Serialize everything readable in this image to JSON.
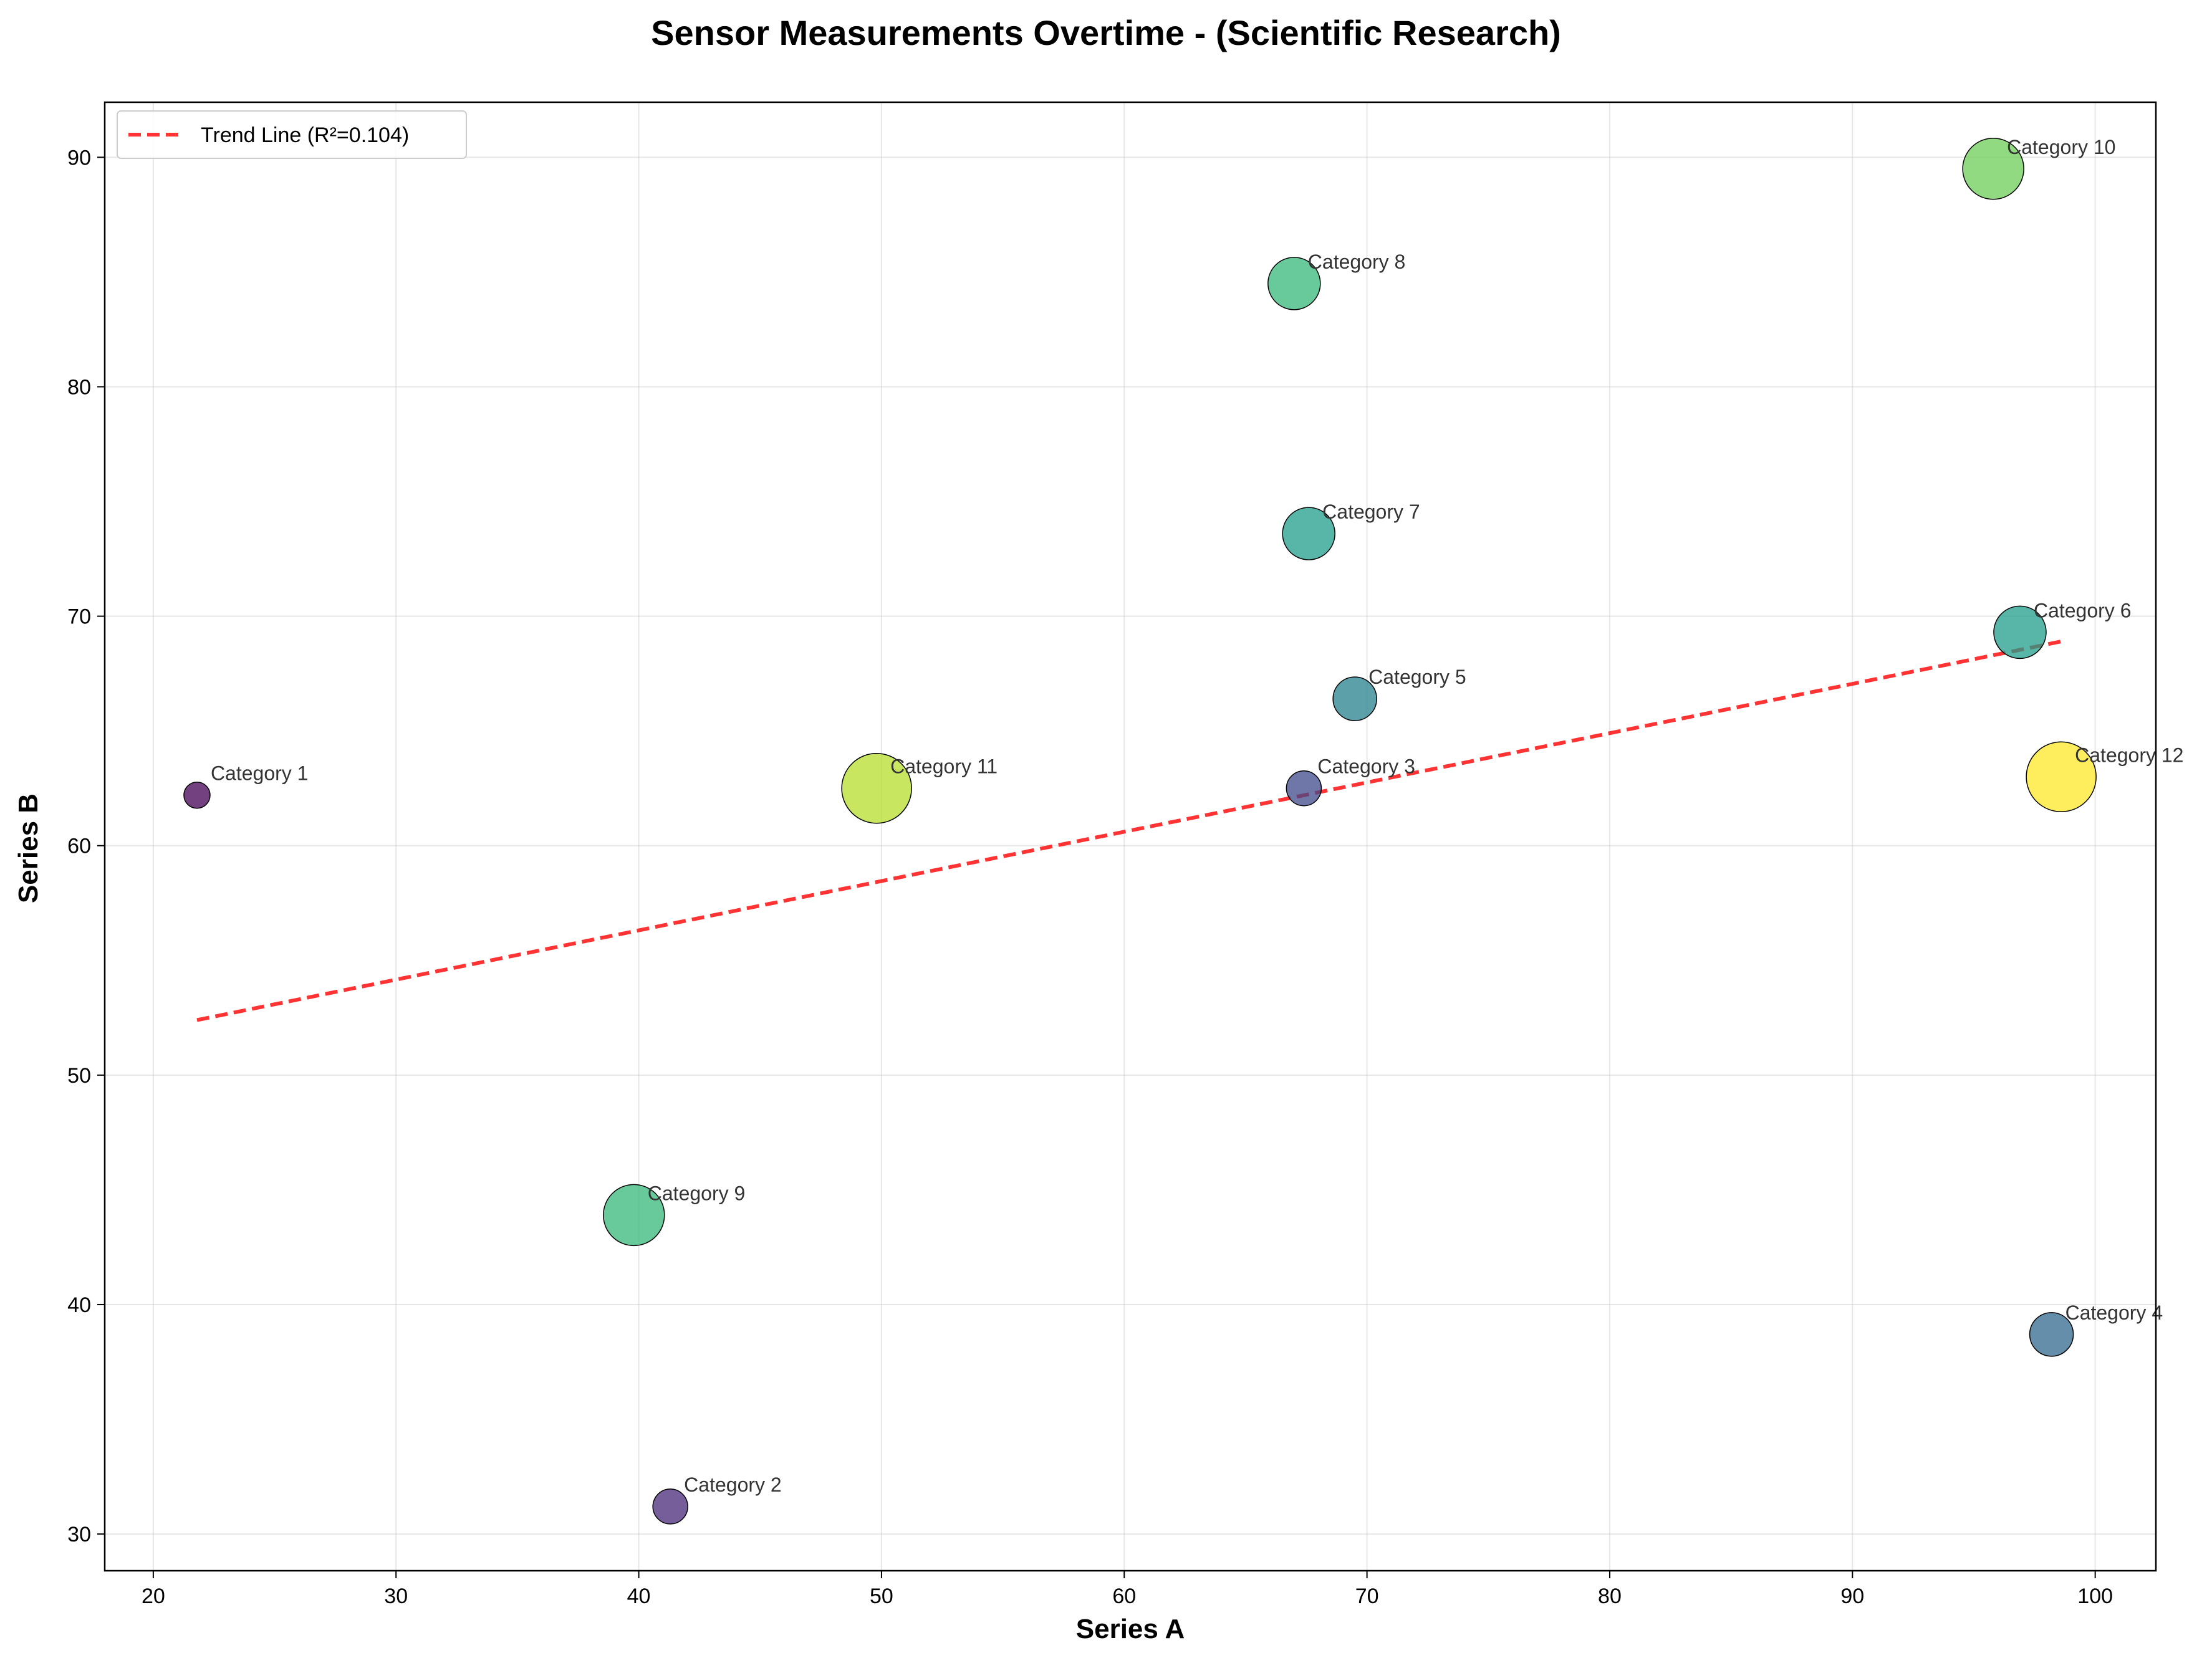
{
  "chart_data": {
    "type": "scatter",
    "title": "Sensor Measurements Overtime - (Scientific Research)",
    "xlabel": "Series A",
    "ylabel": "Series B",
    "xlim": [
      18,
      102.5
    ],
    "ylim": [
      28.4,
      92.4
    ],
    "xticks": [
      20,
      30,
      40,
      50,
      60,
      70,
      80,
      90,
      100
    ],
    "yticks": [
      30,
      40,
      50,
      60,
      70,
      80,
      90
    ],
    "grid": true,
    "legend_position": "top-left",
    "points": [
      {
        "label": "Category 1",
        "x": 21.8,
        "y": 62.2,
        "size": 1,
        "color": "#440154"
      },
      {
        "label": "Category 2",
        "x": 41.3,
        "y": 31.2,
        "size": 2,
        "color": "#482878"
      },
      {
        "label": "Category 3",
        "x": 67.4,
        "y": 62.5,
        "size": 2,
        "color": "#3e4989"
      },
      {
        "label": "Category 4",
        "x": 98.2,
        "y": 38.7,
        "size": 3,
        "color": "#31688e"
      },
      {
        "label": "Category 5",
        "x": 69.5,
        "y": 66.4,
        "size": 3,
        "color": "#26828e"
      },
      {
        "label": "Category 6",
        "x": 96.9,
        "y": 69.3,
        "size": 4,
        "color": "#1f9e89"
      },
      {
        "label": "Category 7",
        "x": 67.6,
        "y": 73.6,
        "size": 4,
        "color": "#1f9e89"
      },
      {
        "label": "Category 8",
        "x": 67.0,
        "y": 84.5,
        "size": 4,
        "color": "#35b779"
      },
      {
        "label": "Category 9",
        "x": 39.8,
        "y": 43.9,
        "size": 5,
        "color": "#35b779"
      },
      {
        "label": "Category 10",
        "x": 95.8,
        "y": 89.5,
        "size": 5,
        "color": "#6ece58"
      },
      {
        "label": "Category 11",
        "x": 49.8,
        "y": 62.5,
        "size": 6,
        "color": "#b5de2b"
      },
      {
        "label": "Category 12",
        "x": 98.6,
        "y": 63.0,
        "size": 6,
        "color": "#fde725"
      }
    ],
    "trend": {
      "label": "Trend Line (R²=0.104)",
      "x": [
        21.8,
        98.6
      ],
      "y": [
        52.4,
        68.9
      ],
      "color": "#ff0000"
    }
  }
}
